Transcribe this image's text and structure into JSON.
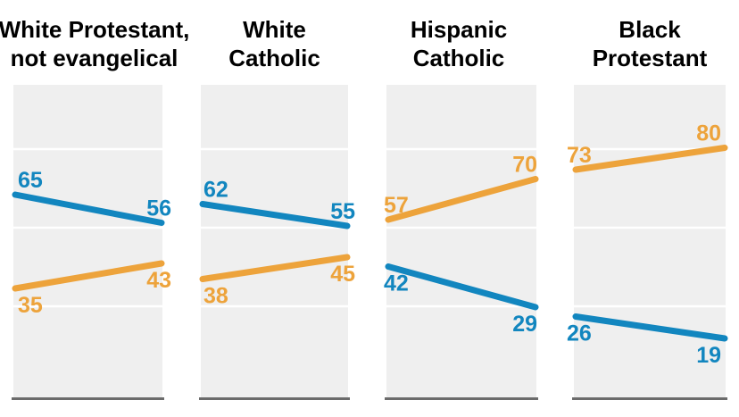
{
  "chart_data": {
    "type": "line",
    "chart_style": "slope-chart-small-multiples",
    "x": [
      "start",
      "end"
    ],
    "ylim": [
      0,
      100
    ],
    "legend_position": "none",
    "grid": "horizontal white gridlines on gray panels",
    "colors": {
      "blue": "#1286bf",
      "orange": "#eda33b",
      "panel_bg": "#efefef",
      "gridline": "#ffffff",
      "baseline": "#6b6b6b",
      "title_text": "#000000"
    },
    "panels": [
      {
        "title_lines": [
          "White Protestant,",
          "not evangelical"
        ],
        "series": [
          {
            "color_name": "blue",
            "values": [
              65,
              56
            ],
            "label_position": "above"
          },
          {
            "color_name": "orange",
            "values": [
              35,
              43
            ],
            "label_position": "below"
          }
        ]
      },
      {
        "title_lines": [
          "White",
          "Catholic"
        ],
        "series": [
          {
            "color_name": "blue",
            "values": [
              62,
              55
            ],
            "label_position": "above"
          },
          {
            "color_name": "orange",
            "values": [
              38,
              45
            ],
            "label_position": "below"
          }
        ]
      },
      {
        "title_lines": [
          "Hispanic",
          "Catholic"
        ],
        "series": [
          {
            "color_name": "orange",
            "values": [
              57,
              70
            ],
            "label_position": "above"
          },
          {
            "color_name": "blue",
            "values": [
              42,
              29
            ],
            "label_position": "below"
          }
        ]
      },
      {
        "title_lines": [
          "Black",
          "Protestant"
        ],
        "series": [
          {
            "color_name": "orange",
            "values": [
              73,
              80
            ],
            "label_position": "above"
          },
          {
            "color_name": "blue",
            "values": [
              26,
              19
            ],
            "label_position": "below"
          }
        ]
      }
    ]
  }
}
